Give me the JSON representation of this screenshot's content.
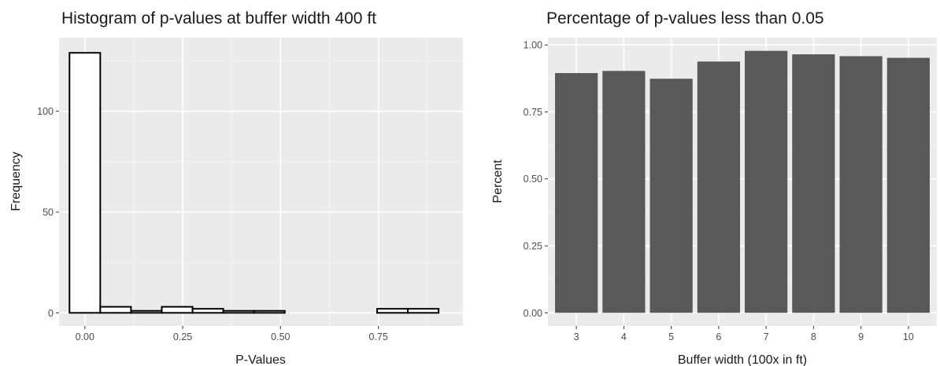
{
  "chart_data": [
    {
      "type": "bar",
      "subtype": "histogram",
      "title": "Histogram of p-values at buffer width 400 ft",
      "xlabel": "P-Values",
      "ylabel": "Frequency",
      "xlim": [
        -0.066,
        0.966
      ],
      "ylim": [
        -6.5,
        136.5
      ],
      "x_ticks": [
        0.0,
        0.25,
        0.5,
        0.75
      ],
      "x_tick_labels": [
        "0.00",
        "0.25",
        "0.50",
        "0.75"
      ],
      "y_ticks": [
        0,
        50,
        100
      ],
      "y_tick_labels": [
        "0",
        "50",
        "100"
      ],
      "bin_width": 0.0786,
      "bins": [
        {
          "x": 0.0,
          "count": 129
        },
        {
          "x": 0.0786,
          "count": 3
        },
        {
          "x": 0.1572,
          "count": 1
        },
        {
          "x": 0.2358,
          "count": 3
        },
        {
          "x": 0.3144,
          "count": 2
        },
        {
          "x": 0.393,
          "count": 1
        },
        {
          "x": 0.4716,
          "count": 1
        },
        {
          "x": 0.5502,
          "count": 0
        },
        {
          "x": 0.6288,
          "count": 0
        },
        {
          "x": 0.7074,
          "count": 0
        },
        {
          "x": 0.786,
          "count": 2
        },
        {
          "x": 0.8646,
          "count": 2
        }
      ],
      "bar_fill": "#ffffff",
      "bar_outline": "#000000",
      "panel_bg": "#ebebeb",
      "grid": true
    },
    {
      "type": "bar",
      "title": "Percentage of p-values less than 0.05",
      "xlabel": "Buffer width (100x in ft)",
      "ylabel": "Percent",
      "categories": [
        "3",
        "4",
        "5",
        "6",
        "7",
        "8",
        "9",
        "10"
      ],
      "values": [
        0.895,
        0.903,
        0.874,
        0.938,
        0.978,
        0.965,
        0.958,
        0.952
      ],
      "ylim": [
        -0.049,
        1.027
      ],
      "y_ticks": [
        0.0,
        0.25,
        0.5,
        0.75,
        1.0
      ],
      "y_tick_labels": [
        "0.00",
        "0.25",
        "0.50",
        "0.75",
        "1.00"
      ],
      "bar_fill": "#595959",
      "panel_bg": "#ebebeb",
      "grid": true
    }
  ]
}
